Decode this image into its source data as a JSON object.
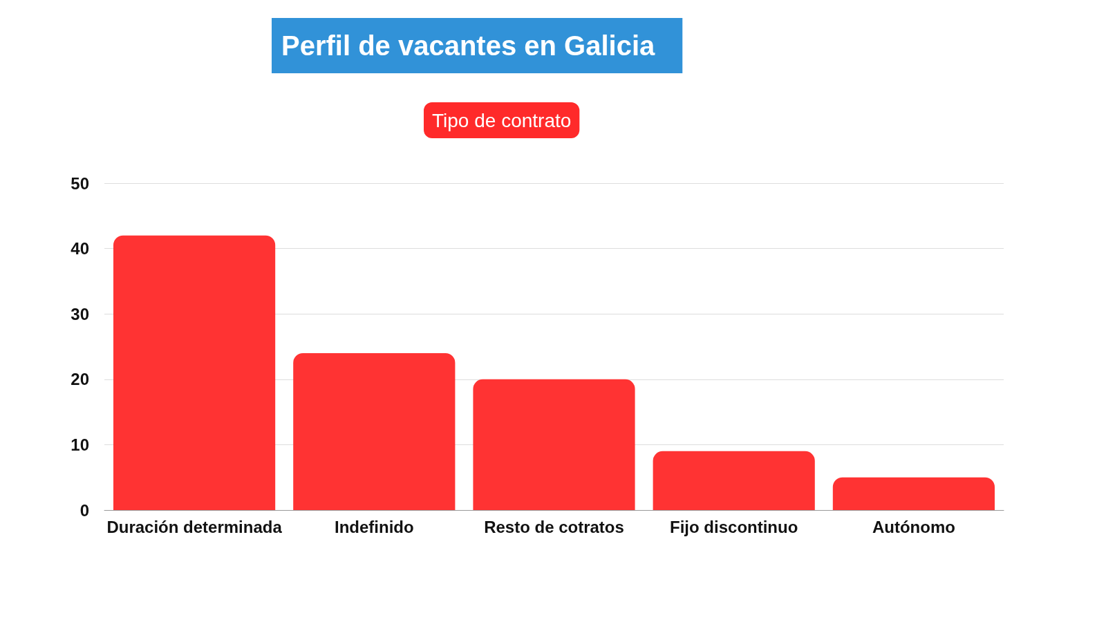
{
  "chart_data": {
    "type": "bar",
    "title": "Perfil de vacantes en Galicia",
    "subtitle": "Tipo de contrato",
    "categories": [
      "Duración determinada",
      "Indefinido",
      "Resto de cotratos",
      "Fijo discontinuo",
      "Autónomo"
    ],
    "values": [
      42,
      24,
      20,
      9,
      5
    ],
    "color": "#ff3333",
    "ylim": [
      0,
      50
    ],
    "yticks": [
      0,
      10,
      20,
      30,
      40,
      50
    ],
    "grid": "y"
  }
}
